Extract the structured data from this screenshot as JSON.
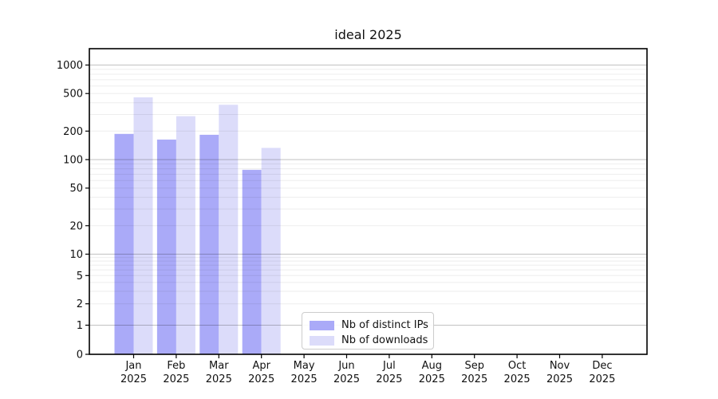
{
  "chart_data": {
    "type": "bar",
    "title": "ideal 2025",
    "categories": [
      "Jan",
      "Feb",
      "Mar",
      "Apr",
      "May",
      "Jun",
      "Jul",
      "Aug",
      "Sep",
      "Oct",
      "Nov",
      "Dec"
    ],
    "x_year_label": "2025",
    "series": [
      {
        "name": "Nb of distinct IPs",
        "color": "#aaaaf8",
        "values": [
          187,
          163,
          183,
          78,
          0,
          0,
          0,
          0,
          0,
          0,
          0,
          0
        ]
      },
      {
        "name": "Nb of downloads",
        "color": "#dcdcfa",
        "values": [
          455,
          288,
          380,
          133,
          0,
          0,
          0,
          0,
          0,
          0,
          0,
          0
        ]
      }
    ],
    "yscale": "symlog",
    "yticks": [
      0,
      1,
      2,
      5,
      10,
      20,
      50,
      100,
      200,
      500,
      1000
    ],
    "ylim": [
      0,
      1500
    ],
    "grid": true,
    "legend_position": "inside-bottom-center"
  },
  "colors": {
    "background": "#ffffff",
    "axis": "#000000",
    "grid_minor": "rgba(0,0,0,0.07)",
    "grid_major": "rgba(0,0,0,0.24)",
    "tick_text": "#111111"
  }
}
